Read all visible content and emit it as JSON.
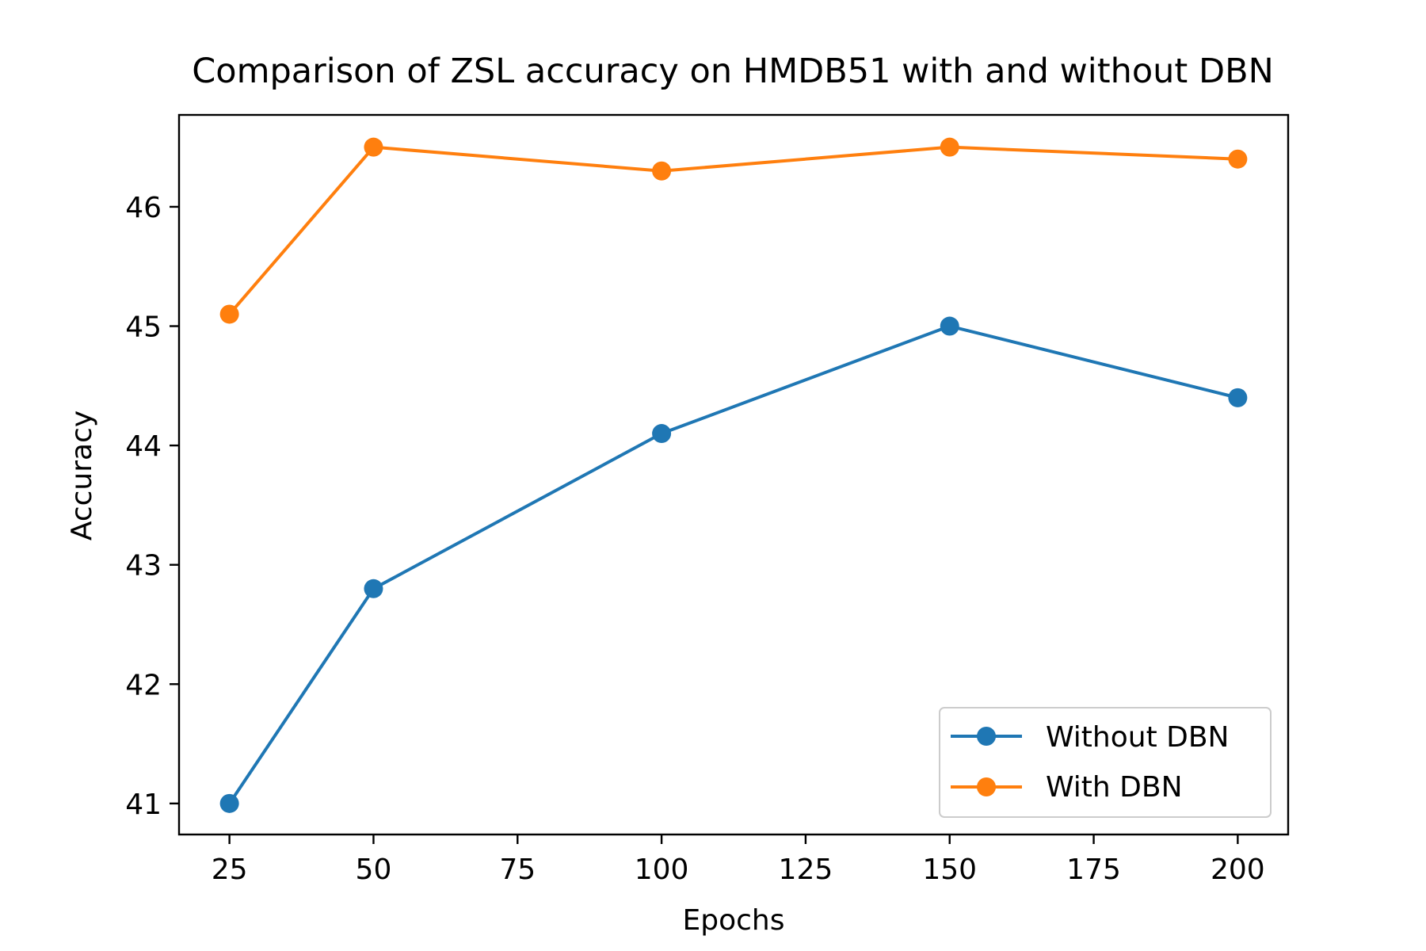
{
  "chart_data": {
    "type": "line",
    "title": "Comparison of ZSL accuracy on HMDB51 with and without DBN",
    "xlabel": "Epochs",
    "ylabel": "Accuracy",
    "x": [
      25,
      50,
      100,
      150,
      200
    ],
    "xlim": [
      16.25,
      208.75
    ],
    "ylim": [
      40.74,
      46.77
    ],
    "xticks": [
      25,
      50,
      75,
      100,
      125,
      150,
      175,
      200
    ],
    "xtick_labels": [
      "25",
      "50",
      "75",
      "100",
      "125",
      "150",
      "175",
      "200"
    ],
    "yticks": [
      41,
      42,
      43,
      44,
      45,
      46
    ],
    "ytick_labels": [
      "41",
      "42",
      "43",
      "44",
      "45",
      "46"
    ],
    "grid": false,
    "legend_position": "lower-right",
    "series": [
      {
        "name": "Without DBN",
        "color": "#1f77b4",
        "marker": "circle",
        "values": [
          41.0,
          42.8,
          44.1,
          45.0,
          44.4
        ]
      },
      {
        "name": "With DBN",
        "color": "#ff7f0e",
        "marker": "circle",
        "values": [
          45.1,
          46.5,
          46.3,
          46.5,
          46.4
        ]
      }
    ]
  }
}
